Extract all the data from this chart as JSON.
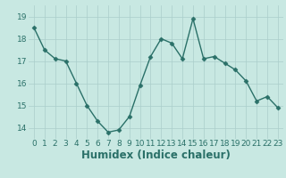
{
  "x": [
    0,
    1,
    2,
    3,
    4,
    5,
    6,
    7,
    8,
    9,
    10,
    11,
    12,
    13,
    14,
    15,
    16,
    17,
    18,
    19,
    20,
    21,
    22,
    23
  ],
  "y": [
    18.5,
    17.5,
    17.1,
    17.0,
    16.0,
    15.0,
    14.3,
    13.8,
    13.9,
    14.5,
    15.9,
    17.2,
    18.0,
    17.8,
    17.1,
    18.9,
    17.1,
    17.2,
    16.9,
    16.6,
    16.1,
    15.2,
    15.4,
    14.9
  ],
  "xlabel": "Humidex (Indice chaleur)",
  "ylim": [
    13.5,
    19.5
  ],
  "xlim": [
    -0.5,
    23.5
  ],
  "yticks": [
    14,
    15,
    16,
    17,
    18,
    19
  ],
  "xticks": [
    0,
    1,
    2,
    3,
    4,
    5,
    6,
    7,
    8,
    9,
    10,
    11,
    12,
    13,
    14,
    15,
    16,
    17,
    18,
    19,
    20,
    21,
    22,
    23
  ],
  "xtick_labels": [
    "0",
    "1",
    "2",
    "3",
    "4",
    "5",
    "6",
    "7",
    "8",
    "9",
    "10",
    "11",
    "12",
    "13",
    "14",
    "15",
    "16",
    "17",
    "18",
    "19",
    "20",
    "21",
    "22",
    "23"
  ],
  "line_color": "#2a7068",
  "marker": "D",
  "marker_size": 2.5,
  "line_width": 1.0,
  "bg_color": "#c8e8e2",
  "grid_color": "#aaceca",
  "tick_label_fontsize": 6.5,
  "xlabel_fontsize": 8.5
}
